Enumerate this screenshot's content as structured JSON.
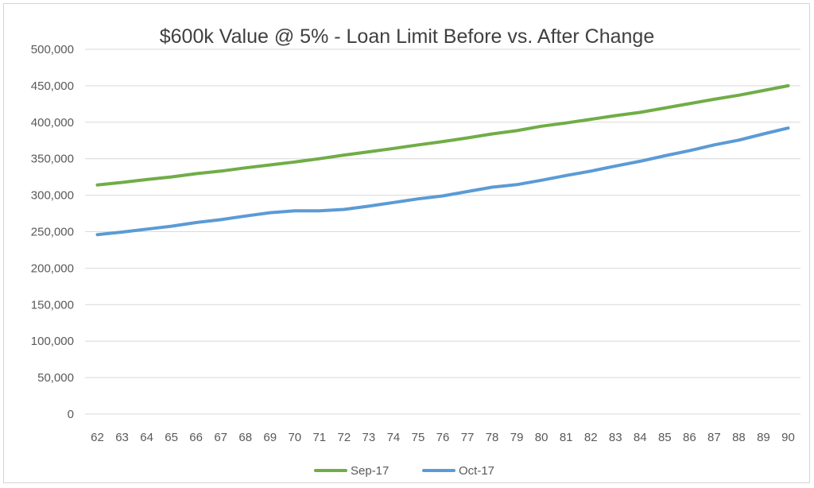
{
  "chart_data": {
    "type": "line",
    "title": "$600k Value @ 5% - Loan Limit Before vs. After Change",
    "xlabel": "",
    "ylabel": "",
    "x": [
      62,
      63,
      64,
      65,
      66,
      67,
      68,
      69,
      70,
      71,
      72,
      73,
      74,
      75,
      76,
      77,
      78,
      79,
      80,
      81,
      82,
      83,
      84,
      85,
      86,
      87,
      88,
      89,
      90
    ],
    "ylim": [
      0,
      500000
    ],
    "y_ticks": [
      0,
      50000,
      100000,
      150000,
      200000,
      250000,
      300000,
      350000,
      400000,
      450000,
      500000
    ],
    "y_tick_labels": [
      "0",
      "50,000",
      "100,000",
      "150,000",
      "200,000",
      "250,000",
      "300,000",
      "350,000",
      "400,000",
      "450,000",
      "500,000"
    ],
    "grid": "horizontal",
    "legend_position": "bottom",
    "series": [
      {
        "name": "Sep-17",
        "color": "#70ad47",
        "values": [
          314000,
          317500,
          321500,
          325000,
          329500,
          333000,
          337500,
          341500,
          345500,
          350000,
          355000,
          359500,
          364000,
          369000,
          373500,
          378500,
          384000,
          388500,
          394500,
          399000,
          404000,
          409000,
          413500,
          419500,
          425500,
          431500,
          437000,
          443500,
          450000
        ]
      },
      {
        "name": "Oct-17",
        "color": "#5b9bd5",
        "values": [
          246000,
          249500,
          253500,
          257500,
          262500,
          266500,
          271500,
          276000,
          278500,
          278500,
          280500,
          285000,
          290000,
          295000,
          299000,
          305000,
          311000,
          314500,
          320500,
          327000,
          333000,
          340000,
          346500,
          354000,
          361000,
          369000,
          375500,
          384000,
          392000
        ]
      }
    ]
  }
}
